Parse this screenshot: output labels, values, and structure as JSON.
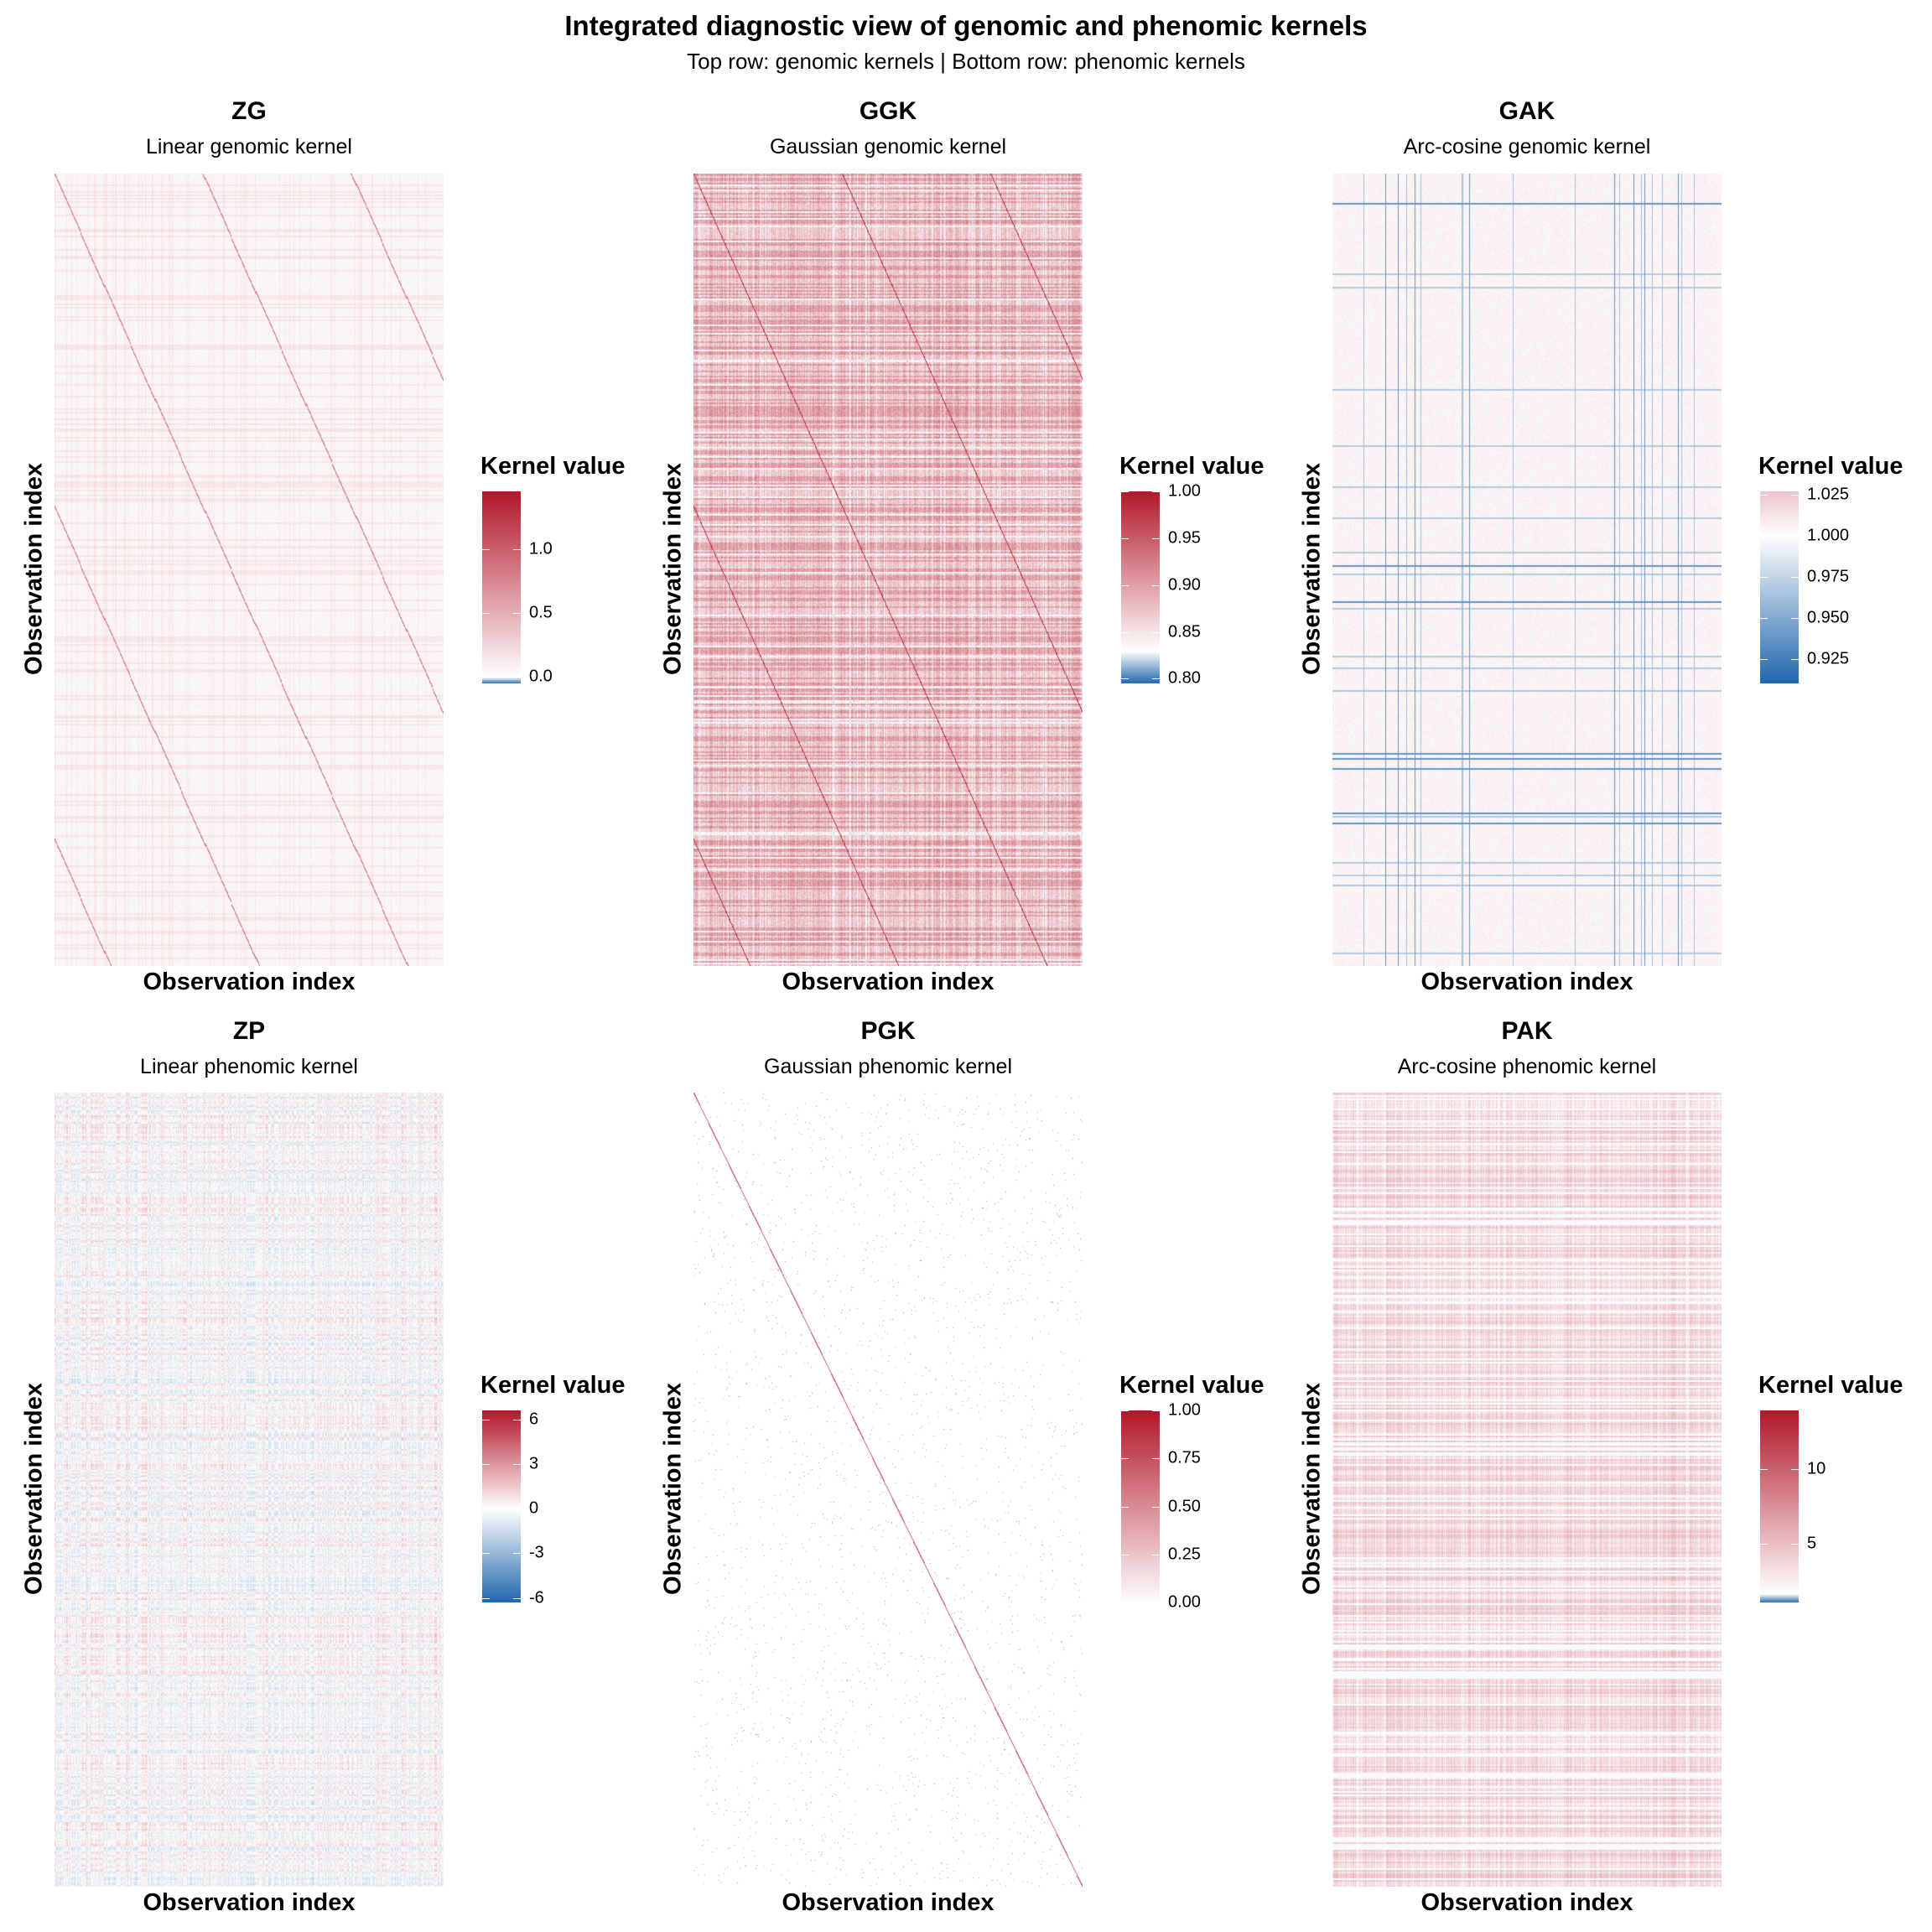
{
  "title": "Integrated diagnostic view of genomic and phenomic kernels",
  "subtitle": "Top row: genomic kernels | Bottom row: phenomic kernels",
  "colors": {
    "low": "#2166ac",
    "mid": "#ffffff",
    "high": "#b2182b"
  },
  "chart_data": [
    {
      "type": "heatmap",
      "title": "ZG",
      "subtitle": "Linear genomic kernel",
      "xlabel": "Observation index",
      "ylabel": "Observation index",
      "legend_title": "Kernel value",
      "range": [
        -0.05,
        1.45
      ],
      "midpoint": 0,
      "ticks": [
        "0.0",
        "0.5",
        "1.0"
      ],
      "tick_values": [
        0,
        0.5,
        1.0
      ]
    },
    {
      "type": "heatmap",
      "title": "GGK",
      "subtitle": "Gaussian genomic kernel",
      "xlabel": "Observation index",
      "ylabel": "Observation index",
      "legend_title": "Kernel value",
      "range": [
        0.795,
        1.0
      ],
      "midpoint": 0.83,
      "ticks": [
        "0.80",
        "0.85",
        "0.90",
        "0.95",
        "1.00"
      ],
      "tick_values": [
        0.8,
        0.85,
        0.9,
        0.95,
        1.0
      ]
    },
    {
      "type": "heatmap",
      "title": "GAK",
      "subtitle": "Arc-cosine genomic kernel",
      "xlabel": "Observation index",
      "ylabel": "Observation index",
      "legend_title": "Kernel value",
      "range": [
        0.91,
        1.027
      ],
      "midpoint": 1.0,
      "ticks": [
        "0.925",
        "0.950",
        "0.975",
        "1.000",
        "1.025"
      ],
      "tick_values": [
        0.925,
        0.95,
        0.975,
        1.0,
        1.025
      ]
    },
    {
      "type": "heatmap",
      "title": "ZP",
      "subtitle": "Linear phenomic kernel",
      "xlabel": "Observation index",
      "ylabel": "Observation index",
      "legend_title": "Kernel value",
      "range": [
        -6.3,
        6.6
      ],
      "midpoint": 0,
      "ticks": [
        "-6",
        "-3",
        "0",
        "3",
        "6"
      ],
      "tick_values": [
        -6,
        -3,
        0,
        3,
        6
      ]
    },
    {
      "type": "heatmap",
      "title": "PGK",
      "subtitle": "Gaussian phenomic kernel",
      "xlabel": "Observation index",
      "ylabel": "Observation index",
      "legend_title": "Kernel value",
      "range": [
        0,
        1.0
      ],
      "midpoint": 0,
      "ticks": [
        "0.00",
        "0.25",
        "0.50",
        "0.75",
        "1.00"
      ],
      "tick_values": [
        0,
        0.25,
        0.5,
        0.75,
        1.0
      ]
    },
    {
      "type": "heatmap",
      "title": "PAK",
      "subtitle": "Arc-cosine phenomic kernel",
      "xlabel": "Observation index",
      "ylabel": "Observation index",
      "legend_title": "Kernel value",
      "range": [
        1.0,
        14.0
      ],
      "midpoint": 1.6,
      "ticks": [
        "5",
        "10"
      ],
      "tick_values": [
        5,
        10
      ]
    }
  ]
}
